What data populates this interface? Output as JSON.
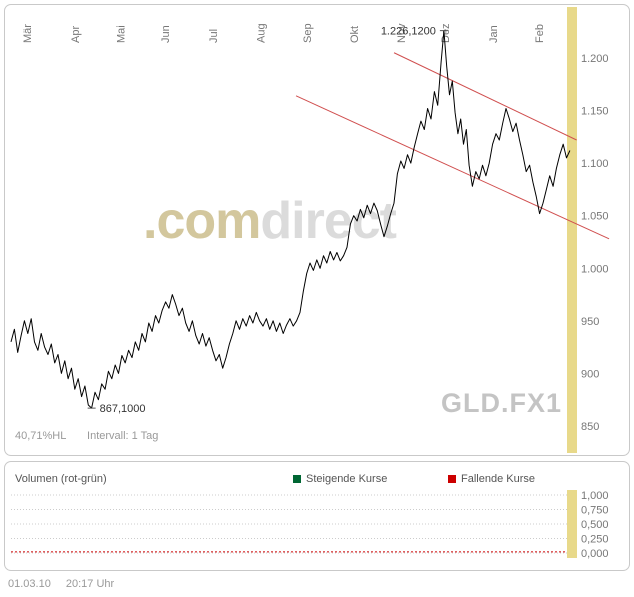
{
  "watermark": {
    "part1": ".com",
    "part2": "direct"
  },
  "footer": {
    "date": "01.03.10",
    "time": "20:17 Uhr"
  },
  "chart_data": [
    {
      "type": "line",
      "symbol": "GLD.FX1",
      "range_pct_label": "40,71%HL",
      "interval_label": "Intervall: 1 Tag",
      "x_tick_labels": [
        "Mär",
        "Apr",
        "Mai",
        "Jun",
        "Jul",
        "Aug",
        "Sep",
        "Okt",
        "Nov",
        "Dez",
        "Jan",
        "Feb"
      ],
      "x_tick_pos": [
        0.021,
        0.107,
        0.188,
        0.268,
        0.354,
        0.438,
        0.521,
        0.605,
        0.689,
        0.768,
        0.854,
        0.936
      ],
      "y_ticks": [
        {
          "label": "1.200",
          "value": 1200
        },
        {
          "label": "1.150",
          "value": 1150
        },
        {
          "label": "1.100",
          "value": 1100
        },
        {
          "label": "1.050",
          "value": 1050
        },
        {
          "label": "1.000",
          "value": 1000
        },
        {
          "label": "950",
          "value": 950
        },
        {
          "label": "900",
          "value": 900
        },
        {
          "label": "850",
          "value": 850
        }
      ],
      "ylim": [
        838,
        1262
      ],
      "grid": false,
      "legend_position": "none",
      "highlight_band_color": "#e8d98a",
      "line_color": "#000000",
      "trend_color": "#d04f4f",
      "series": [
        {
          "name": "GLD.FX1",
          "color": "#000000",
          "points": [
            [
              0.0,
              930
            ],
            [
              0.006,
              942
            ],
            [
              0.012,
              920
            ],
            [
              0.018,
              936
            ],
            [
              0.024,
              950
            ],
            [
              0.03,
              938
            ],
            [
              0.036,
              952
            ],
            [
              0.042,
              930
            ],
            [
              0.048,
              922
            ],
            [
              0.054,
              938
            ],
            [
              0.06,
              925
            ],
            [
              0.066,
              918
            ],
            [
              0.072,
              928
            ],
            [
              0.078,
              910
            ],
            [
              0.084,
              918
            ],
            [
              0.09,
              900
            ],
            [
              0.096,
              912
            ],
            [
              0.102,
              895
            ],
            [
              0.108,
              905
            ],
            [
              0.114,
              885
            ],
            [
              0.12,
              895
            ],
            [
              0.126,
              878
            ],
            [
              0.132,
              888
            ],
            [
              0.138,
              870
            ],
            [
              0.144,
              867
            ],
            [
              0.15,
              882
            ],
            [
              0.156,
              875
            ],
            [
              0.162,
              890
            ],
            [
              0.168,
              885
            ],
            [
              0.174,
              902
            ],
            [
              0.18,
              895
            ],
            [
              0.186,
              908
            ],
            [
              0.192,
              900
            ],
            [
              0.198,
              917
            ],
            [
              0.204,
              910
            ],
            [
              0.21,
              922
            ],
            [
              0.216,
              915
            ],
            [
              0.222,
              930
            ],
            [
              0.228,
              922
            ],
            [
              0.234,
              938
            ],
            [
              0.24,
              930
            ],
            [
              0.246,
              948
            ],
            [
              0.252,
              940
            ],
            [
              0.258,
              955
            ],
            [
              0.264,
              948
            ],
            [
              0.27,
              960
            ],
            [
              0.276,
              968
            ],
            [
              0.282,
              962
            ],
            [
              0.288,
              975
            ],
            [
              0.294,
              966
            ],
            [
              0.3,
              955
            ],
            [
              0.306,
              962
            ],
            [
              0.312,
              948
            ],
            [
              0.318,
              940
            ],
            [
              0.324,
              950
            ],
            [
              0.33,
              936
            ],
            [
              0.336,
              928
            ],
            [
              0.342,
              938
            ],
            [
              0.348,
              926
            ],
            [
              0.354,
              934
            ],
            [
              0.36,
              922
            ],
            [
              0.366,
              912
            ],
            [
              0.372,
              918
            ],
            [
              0.378,
              905
            ],
            [
              0.384,
              915
            ],
            [
              0.39,
              928
            ],
            [
              0.396,
              938
            ],
            [
              0.402,
              950
            ],
            [
              0.408,
              942
            ],
            [
              0.414,
              952
            ],
            [
              0.42,
              945
            ],
            [
              0.426,
              955
            ],
            [
              0.432,
              948
            ],
            [
              0.438,
              958
            ],
            [
              0.444,
              950
            ],
            [
              0.45,
              945
            ],
            [
              0.456,
              952
            ],
            [
              0.462,
              942
            ],
            [
              0.468,
              950
            ],
            [
              0.474,
              940
            ],
            [
              0.48,
              948
            ],
            [
              0.486,
              938
            ],
            [
              0.492,
              946
            ],
            [
              0.498,
              952
            ],
            [
              0.504,
              945
            ],
            [
              0.51,
              950
            ],
            [
              0.516,
              958
            ],
            [
              0.522,
              978
            ],
            [
              0.528,
              995
            ],
            [
              0.534,
              1005
            ],
            [
              0.54,
              998
            ],
            [
              0.546,
              1008
            ],
            [
              0.552,
              1000
            ],
            [
              0.558,
              1012
            ],
            [
              0.564,
              1005
            ],
            [
              0.57,
              1016
            ],
            [
              0.576,
              1008
            ],
            [
              0.582,
              1015
            ],
            [
              0.588,
              1007
            ],
            [
              0.594,
              1012
            ],
            [
              0.6,
              1020
            ],
            [
              0.606,
              1042
            ],
            [
              0.612,
              1050
            ],
            [
              0.618,
              1045
            ],
            [
              0.624,
              1056
            ],
            [
              0.63,
              1048
            ],
            [
              0.636,
              1060
            ],
            [
              0.642,
              1052
            ],
            [
              0.648,
              1062
            ],
            [
              0.654,
              1055
            ],
            [
              0.66,
              1042
            ],
            [
              0.666,
              1030
            ],
            [
              0.672,
              1040
            ],
            [
              0.678,
              1052
            ],
            [
              0.684,
              1062
            ],
            [
              0.69,
              1090
            ],
            [
              0.696,
              1102
            ],
            [
              0.702,
              1095
            ],
            [
              0.708,
              1108
            ],
            [
              0.714,
              1100
            ],
            [
              0.72,
              1115
            ],
            [
              0.726,
              1128
            ],
            [
              0.732,
              1140
            ],
            [
              0.738,
              1132
            ],
            [
              0.744,
              1152
            ],
            [
              0.75,
              1142
            ],
            [
              0.756,
              1168
            ],
            [
              0.762,
              1155
            ],
            [
              0.768,
              1196
            ],
            [
              0.773,
              1226
            ],
            [
              0.778,
              1192
            ],
            [
              0.783,
              1165
            ],
            [
              0.788,
              1178
            ],
            [
              0.793,
              1148
            ],
            [
              0.798,
              1128
            ],
            [
              0.803,
              1142
            ],
            [
              0.808,
              1118
            ],
            [
              0.813,
              1132
            ],
            [
              0.818,
              1098
            ],
            [
              0.824,
              1078
            ],
            [
              0.83,
              1092
            ],
            [
              0.836,
              1085
            ],
            [
              0.842,
              1098
            ],
            [
              0.848,
              1088
            ],
            [
              0.854,
              1100
            ],
            [
              0.86,
              1118
            ],
            [
              0.866,
              1128
            ],
            [
              0.872,
              1122
            ],
            [
              0.878,
              1138
            ],
            [
              0.884,
              1152
            ],
            [
              0.89,
              1142
            ],
            [
              0.896,
              1130
            ],
            [
              0.902,
              1138
            ],
            [
              0.908,
              1122
            ],
            [
              0.914,
              1108
            ],
            [
              0.92,
              1092
            ],
            [
              0.926,
              1098
            ],
            [
              0.932,
              1082
            ],
            [
              0.938,
              1068
            ],
            [
              0.944,
              1052
            ],
            [
              0.95,
              1062
            ],
            [
              0.956,
              1075
            ],
            [
              0.962,
              1088
            ],
            [
              0.968,
              1078
            ],
            [
              0.974,
              1095
            ],
            [
              0.98,
              1108
            ],
            [
              0.986,
              1118
            ],
            [
              0.992,
              1105
            ],
            [
              0.998,
              1112
            ]
          ]
        }
      ],
      "trendlines": [
        {
          "x1": 0.509,
          "p1": 1164,
          "x2": 1.068,
          "p2": 1028
        },
        {
          "x1": 0.684,
          "p1": 1205,
          "x2": 1.01,
          "p2": 1122
        }
      ],
      "annotations": [
        {
          "text": "1.226,1200",
          "x": 0.773,
          "value": 1226,
          "side": "left"
        },
        {
          "text": "867,1000",
          "x": 0.144,
          "value": 867,
          "side": "right"
        }
      ],
      "high_label": "1.226,1200",
      "low_label": "867,1000"
    },
    {
      "type": "line",
      "title": "Volumen (rot-grün)",
      "legend": [
        {
          "label": "Steigende Kurse",
          "color": "#006633"
        },
        {
          "label": "Fallende Kurse",
          "color": "#cc0000"
        }
      ],
      "y_ticks": [
        {
          "label": "1,000",
          "value": 1.0
        },
        {
          "label": "0,750",
          "value": 0.75
        },
        {
          "label": "0,500",
          "value": 0.5
        },
        {
          "label": "0,250",
          "value": 0.25
        },
        {
          "label": "0,000",
          "value": 0.0
        }
      ],
      "ylim": [
        0,
        1
      ],
      "grid": true,
      "highlight_band_color": "#e8d98a",
      "series": [
        {
          "name": "Volumen",
          "color": "#cc0000",
          "style": "dashed",
          "value": 0.02
        }
      ]
    }
  ]
}
